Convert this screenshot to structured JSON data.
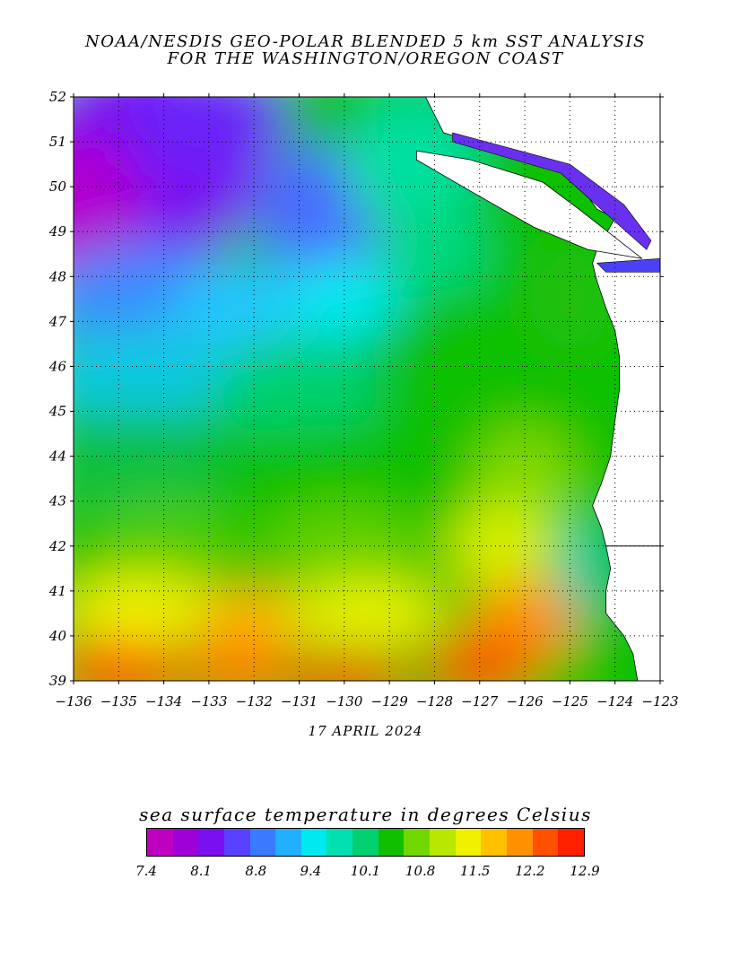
{
  "title": {
    "line1": "NOAA/NESDIS GEO-POLAR BLENDED 5 km SST ANALYSIS",
    "line2": "FOR THE WASHINGTON/OREGON COAST"
  },
  "date": "17 APRIL 2024",
  "map": {
    "lon_range": [
      -136,
      -123
    ],
    "lat_range": [
      39,
      52
    ],
    "lon_ticks": [
      -136,
      -135,
      -134,
      -133,
      -132,
      -131,
      -130,
      -129,
      -128,
      -127,
      -126,
      -125,
      -124,
      -123
    ],
    "lat_ticks": [
      39,
      40,
      41,
      42,
      43,
      44,
      45,
      46,
      47,
      48,
      49,
      50,
      51,
      52
    ],
    "grid": true
  },
  "colorbar": {
    "title": "sea surface temperature in degrees Celsius",
    "ticks": [
      "7.4",
      "8.1",
      "8.8",
      "9.4",
      "10.1",
      "10.8",
      "11.5",
      "12.2",
      "12.9"
    ],
    "colors": [
      "#c000c0",
      "#a000d8",
      "#7a10f0",
      "#5a40ff",
      "#3a7aff",
      "#20b0ff",
      "#00e8f0",
      "#00e0b0",
      "#00d070",
      "#10c000",
      "#70d800",
      "#b8e800",
      "#f0f000",
      "#ffc000",
      "#ff9000",
      "#ff5000",
      "#ff2000"
    ]
  }
}
